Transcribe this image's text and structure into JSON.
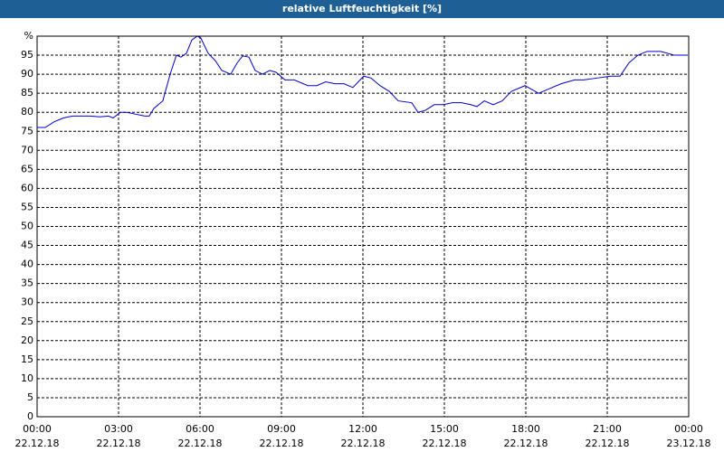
{
  "chart_data": {
    "type": "line",
    "title": "relative Luftfeuchtigkeit [%]",
    "x": [
      0,
      0.3,
      0.63,
      0.97,
      1.3,
      1.97,
      2.3,
      2.63,
      2.8,
      3.07,
      3.3,
      3.63,
      3.97,
      4.13,
      4.3,
      4.63,
      4.9,
      5.13,
      5.3,
      5.5,
      5.7,
      5.9,
      6.03,
      6.3,
      6.57,
      6.8,
      7.13,
      7.37,
      7.57,
      7.8,
      8.03,
      8.3,
      8.57,
      8.8,
      9.13,
      9.47,
      9.97,
      10.3,
      10.63,
      10.97,
      11.3,
      11.63,
      11.83,
      12.03,
      12.3,
      12.63,
      12.97,
      13.3,
      13.8,
      14.03,
      14.3,
      14.63,
      14.97,
      15.3,
      15.63,
      15.97,
      16.2,
      16.47,
      16.8,
      17.13,
      17.47,
      17.97,
      18.47,
      18.97,
      19.3,
      19.8,
      20.13,
      20.63,
      21.13,
      21.47,
      21.8,
      22.13,
      22.47,
      22.97,
      23.47,
      23.97
    ],
    "series": [
      {
        "color": "#0000cc",
        "values": [
          76,
          76,
          77.5,
          78.5,
          79,
          79,
          78.8,
          79,
          78.5,
          80,
          80,
          79.5,
          79,
          79,
          81,
          83,
          90,
          95,
          94.5,
          95.5,
          99,
          100,
          99.5,
          95.5,
          93.5,
          91,
          90,
          93,
          94.8,
          94.5,
          91,
          90,
          91,
          90.5,
          88.5,
          88.5,
          87,
          87,
          88,
          87.5,
          87.5,
          86.5,
          88,
          89.5,
          89,
          87,
          85.5,
          83,
          82.5,
          80,
          80.5,
          82,
          82,
          82.5,
          82.5,
          82,
          81.5,
          83,
          82,
          83,
          85.5,
          87,
          85,
          86.5,
          87.5,
          88.5,
          88.5,
          89,
          89.5,
          89.5,
          93,
          95,
          96,
          96,
          95,
          95
        ]
      }
    ],
    "xlim": [
      0,
      24
    ],
    "ylim": [
      0,
      100
    ],
    "xticks": [
      {
        "value": 0,
        "label": "00:00",
        "date": "22.12.18"
      },
      {
        "value": 3,
        "label": "03:00",
        "date": "22.12.18"
      },
      {
        "value": 6,
        "label": "06:00",
        "date": "22.12.18"
      },
      {
        "value": 9,
        "label": "09:00",
        "date": "22.12.18"
      },
      {
        "value": 12,
        "label": "12:00",
        "date": "22.12.18"
      },
      {
        "value": 15,
        "label": "15:00",
        "date": "22.12.18"
      },
      {
        "value": 18,
        "label": "18:00",
        "date": "22.12.18"
      },
      {
        "value": 21,
        "label": "21:00",
        "date": "22.12.18"
      },
      {
        "value": 24,
        "label": "00:00",
        "date": "23.12.18"
      }
    ],
    "yticks": [
      0,
      5,
      10,
      15,
      20,
      25,
      30,
      35,
      40,
      45,
      50,
      55,
      60,
      65,
      70,
      75,
      80,
      85,
      90,
      95,
      {
        "value": 100,
        "label": "%"
      }
    ],
    "grid": true
  }
}
